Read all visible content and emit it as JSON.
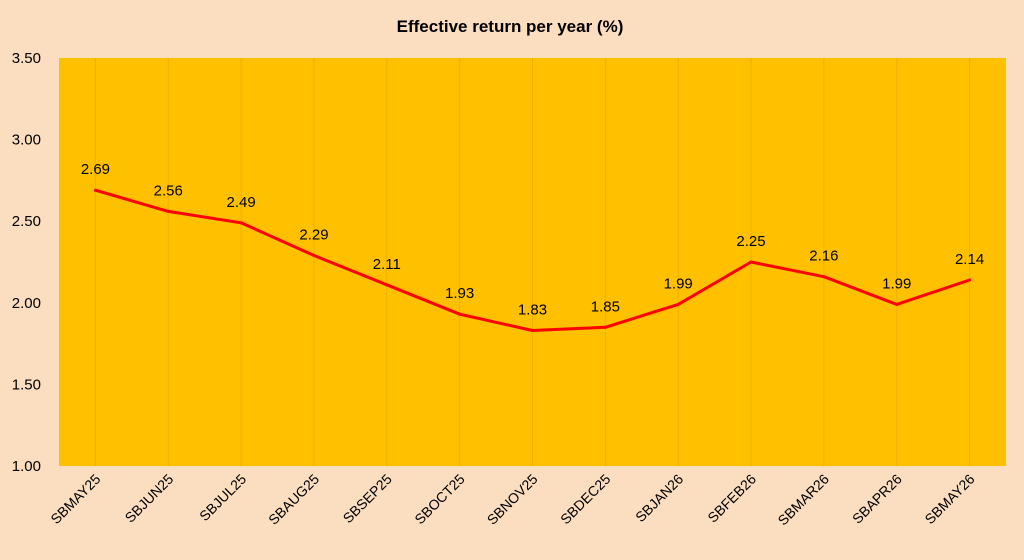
{
  "colors": {
    "page_background": "#FBDDC0",
    "plot_background": "#FFC000",
    "line": "#FF0000",
    "vertical_gridline": "#F0B000",
    "text": "#000000"
  },
  "chart_data": {
    "type": "line",
    "title": "Effective return per year (%)",
    "xlabel": "",
    "ylabel": "",
    "categories": [
      "SBMAY25",
      "SBJUN25",
      "SBJUL25",
      "SBAUG25",
      "SBSEP25",
      "SBOCT25",
      "SBNOV25",
      "SBDEC25",
      "SBJAN26",
      "SBFEB26",
      "SBMAR26",
      "SBAPR26",
      "SBMAY26"
    ],
    "series": [
      {
        "values": [
          2.69,
          2.56,
          2.49,
          2.29,
          2.11,
          1.93,
          1.83,
          1.85,
          1.99,
          2.25,
          2.16,
          1.99,
          2.14
        ]
      }
    ],
    "data_labels": [
      "2.69",
      "2.56",
      "2.49",
      "2.29",
      "2.11",
      "1.93",
      "1.83",
      "1.85",
      "1.99",
      "2.25",
      "2.16",
      "1.99",
      "2.14"
    ],
    "ylim": [
      1.0,
      3.5
    ],
    "yticks": [
      "1.00",
      "1.50",
      "2.00",
      "2.50",
      "3.00",
      "3.50"
    ],
    "grid": "vertical",
    "legend": "none"
  }
}
